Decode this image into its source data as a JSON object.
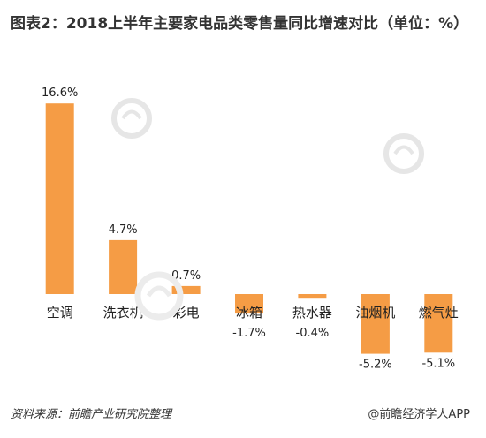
{
  "title": "图表2：2018上半年主要家电品类零售量同比增速对比（单位：%）",
  "source": "资料来源：前瞻产业研究院整理",
  "brand": "@前瞻经济学人APP",
  "chart_data": {
    "type": "bar",
    "title": "图表2：2018上半年主要家电品类零售量同比增速对比（单位：%）",
    "xlabel": "",
    "ylabel": "",
    "categories": [
      "空调",
      "洗衣机",
      "彩电",
      "冰箱",
      "热水器",
      "油烟机",
      "燃气灶"
    ],
    "values": [
      16.6,
      4.7,
      0.7,
      -1.7,
      -0.4,
      -5.2,
      -5.1
    ],
    "value_labels": [
      "16.6%",
      "4.7%",
      "0.7%",
      "-1.7%",
      "-0.4%",
      "-5.2%",
      "-5.1%"
    ],
    "ylim": [
      -6,
      17
    ],
    "grid": false,
    "legend": "none",
    "bar_color": "#F59C45"
  }
}
